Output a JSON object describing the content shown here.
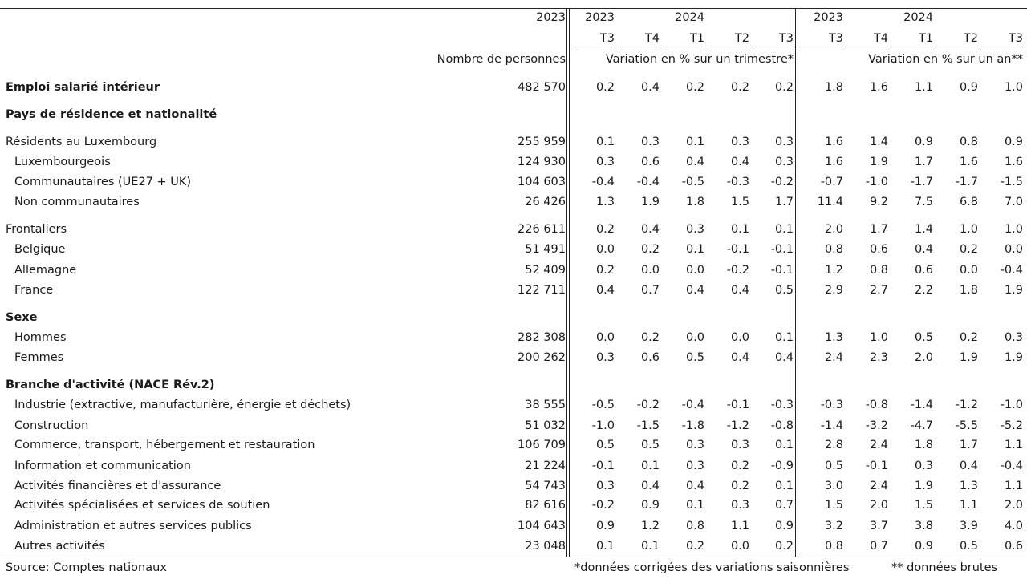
{
  "header": {
    "col_first_year": "2023",
    "quarter_years": [
      {
        "year": "2023",
        "group": "q"
      },
      {
        "year": "2024",
        "group": "q"
      },
      {
        "year": "2023",
        "group": "a"
      },
      {
        "year": "2024",
        "group": "a"
      }
    ],
    "quarters_q": [
      "T3",
      "T4",
      "T1",
      "T2",
      "T3"
    ],
    "quarters_a": [
      "T3",
      "T4",
      "T1",
      "T2",
      "T3"
    ],
    "unit_first": "Nombre de personnes",
    "unit_q": "Variation en % sur un trimestre*",
    "unit_a": "Variation en % sur un an**"
  },
  "rows": [
    {
      "label": "Emploi salarié intérieur",
      "bold": true,
      "indent": false,
      "count": "482 570",
      "q": [
        "0.2",
        "0.4",
        "0.2",
        "0.2",
        "0.2"
      ],
      "a": [
        "1.8",
        "1.6",
        "1.1",
        "0.9",
        "1.0"
      ]
    },
    {
      "label": "Pays de résidence et nationalité",
      "bold": true,
      "section": true
    },
    {
      "label": "Résidents au Luxembourg",
      "indent": false,
      "count": "255 959",
      "q": [
        "0.1",
        "0.3",
        "0.1",
        "0.3",
        "0.3"
      ],
      "a": [
        "1.6",
        "1.4",
        "0.9",
        "0.8",
        "0.9"
      ]
    },
    {
      "label": "Luxembourgeois",
      "indent": true,
      "count": "124 930",
      "q": [
        "0.3",
        "0.6",
        "0.4",
        "0.4",
        "0.3"
      ],
      "a": [
        "1.6",
        "1.9",
        "1.7",
        "1.6",
        "1.6"
      ]
    },
    {
      "label": "Communautaires (UE27 + UK)",
      "indent": true,
      "count": "104 603",
      "q": [
        "-0.4",
        "-0.4",
        "-0.5",
        "-0.3",
        "-0.2"
      ],
      "a": [
        "-0.7",
        "-1.0",
        "-1.7",
        "-1.7",
        "-1.5"
      ]
    },
    {
      "label": "Non communautaires",
      "indent": true,
      "count": "26 426",
      "q": [
        "1.3",
        "1.9",
        "1.8",
        "1.5",
        "1.7"
      ],
      "a": [
        "11.4",
        "9.2",
        "7.5",
        "6.8",
        "7.0"
      ]
    },
    {
      "label": "Frontaliers",
      "indent": false,
      "count": "226 611",
      "q": [
        "0.2",
        "0.4",
        "0.3",
        "0.1",
        "0.1"
      ],
      "a": [
        "2.0",
        "1.7",
        "1.4",
        "1.0",
        "1.0"
      ]
    },
    {
      "label": "Belgique",
      "indent": true,
      "count": "51 491",
      "q": [
        "0.0",
        "0.2",
        "0.1",
        "-0.1",
        "-0.1"
      ],
      "a": [
        "0.8",
        "0.6",
        "0.4",
        "0.2",
        "0.0"
      ]
    },
    {
      "label": "Allemagne",
      "indent": true,
      "count": "52 409",
      "q": [
        "0.2",
        "0.0",
        "0.0",
        "-0.2",
        "-0.1"
      ],
      "a": [
        "1.2",
        "0.8",
        "0.6",
        "0.0",
        "-0.4"
      ]
    },
    {
      "label": "France",
      "indent": true,
      "count": "122 711",
      "q": [
        "0.4",
        "0.7",
        "0.4",
        "0.4",
        "0.5"
      ],
      "a": [
        "2.9",
        "2.7",
        "2.2",
        "1.8",
        "1.9"
      ]
    },
    {
      "label": "Sexe",
      "bold": true,
      "section": true
    },
    {
      "label": "Hommes",
      "indent": true,
      "count": "282 308",
      "q": [
        "0.0",
        "0.2",
        "0.0",
        "0.0",
        "0.1"
      ],
      "a": [
        "1.3",
        "1.0",
        "0.5",
        "0.2",
        "0.3"
      ]
    },
    {
      "label": "Femmes",
      "indent": true,
      "count": "200 262",
      "q": [
        "0.3",
        "0.6",
        "0.5",
        "0.4",
        "0.4"
      ],
      "a": [
        "2.4",
        "2.3",
        "2.0",
        "1.9",
        "1.9"
      ]
    },
    {
      "label": "Branche d'activité (NACE Rév.2)",
      "bold": true,
      "section": true
    },
    {
      "label": "Industrie (extractive, manufacturière, énergie et déchets)",
      "indent": true,
      "count": "38 555",
      "q": [
        "-0.5",
        "-0.2",
        "-0.4",
        "-0.1",
        "-0.3"
      ],
      "a": [
        "-0.3",
        "-0.8",
        "-1.4",
        "-1.2",
        "-1.0"
      ]
    },
    {
      "label": "Construction",
      "indent": true,
      "count": "51 032",
      "q": [
        "-1.0",
        "-1.5",
        "-1.8",
        "-1.2",
        "-0.8"
      ],
      "a": [
        "-1.4",
        "-3.2",
        "-4.7",
        "-5.5",
        "-5.2"
      ]
    },
    {
      "label": "Commerce, transport, hébergement et restauration",
      "indent": true,
      "count": "106 709",
      "q": [
        "0.5",
        "0.5",
        "0.3",
        "0.3",
        "0.1"
      ],
      "a": [
        "2.8",
        "2.4",
        "1.8",
        "1.7",
        "1.1"
      ]
    },
    {
      "label": "Information et communication",
      "indent": true,
      "count": "21 224",
      "q": [
        "-0.1",
        "0.1",
        "0.3",
        "0.2",
        "-0.9"
      ],
      "a": [
        "0.5",
        "-0.1",
        "0.3",
        "0.4",
        "-0.4"
      ]
    },
    {
      "label": "Activités financières et d'assurance",
      "indent": true,
      "count": "54 743",
      "q": [
        "0.3",
        "0.4",
        "0.4",
        "0.2",
        "0.1"
      ],
      "a": [
        "3.0",
        "2.4",
        "1.9",
        "1.3",
        "1.1"
      ]
    },
    {
      "label": "Activités spécialisées et services de soutien",
      "indent": true,
      "count": "82 616",
      "q": [
        "-0.2",
        "0.9",
        "0.1",
        "0.3",
        "0.7"
      ],
      "a": [
        "1.5",
        "2.0",
        "1.5",
        "1.1",
        "2.0"
      ]
    },
    {
      "label": "Administration et autres services publics",
      "indent": true,
      "count": "104 643",
      "q": [
        "0.9",
        "1.2",
        "0.8",
        "1.1",
        "0.9"
      ],
      "a": [
        "3.2",
        "3.7",
        "3.8",
        "3.9",
        "4.0"
      ]
    },
    {
      "label": "Autres activités",
      "indent": true,
      "count": "23 048",
      "q": [
        "0.1",
        "0.1",
        "0.2",
        "0.0",
        "0.2"
      ],
      "a": [
        "0.8",
        "0.7",
        "0.9",
        "0.5",
        "0.6"
      ]
    }
  ],
  "footer": {
    "source": "Source: Comptes nationaux",
    "note_q": "*données corrigées des variations saisonnières",
    "note_a": "** données brutes"
  }
}
